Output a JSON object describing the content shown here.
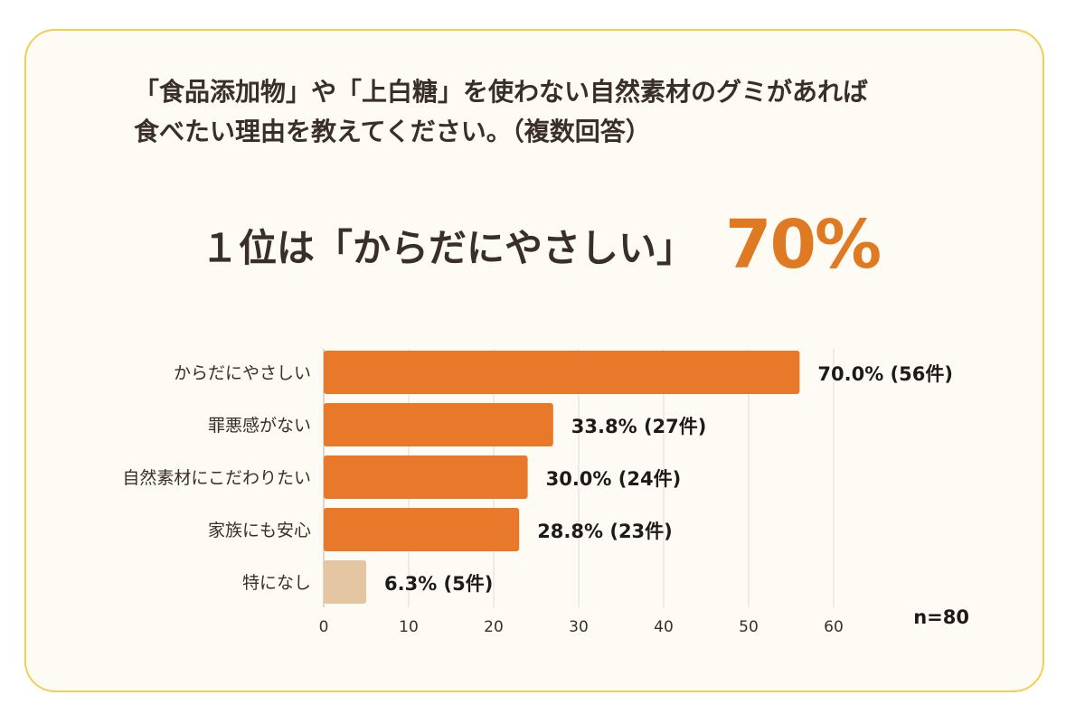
{
  "question": {
    "line1": "「食品添加物」や「上白糖」を使わない自然素材のグミがあれば",
    "line2": "食べたい理由を教えてください。（複数回答）"
  },
  "headline": {
    "rank_text": "１位は「からだにやさしい」",
    "percent": "70%"
  },
  "sample_size": "n=80",
  "colors": {
    "bar": "#e8792b",
    "bar_none": "#e4c7a2",
    "headline_accent": "#e07a22",
    "border": "#f0cf55"
  },
  "chart_data": {
    "type": "bar",
    "orientation": "horizontal",
    "categories": [
      "からだにやさしい",
      "罪悪感がない",
      "自然素材にこだわりたい",
      "家族にも安心",
      "特になし"
    ],
    "values": [
      56,
      27,
      24,
      23,
      5
    ],
    "data_labels": [
      "70.0% (56件)",
      "33.8% (27件)",
      "30.0% (24件)",
      "28.8% (23件)",
      "6.3% (5件)"
    ],
    "x_ticks": [
      0,
      10,
      20,
      30,
      40,
      50,
      60
    ],
    "xlim": [
      0,
      60
    ],
    "grid": true
  }
}
